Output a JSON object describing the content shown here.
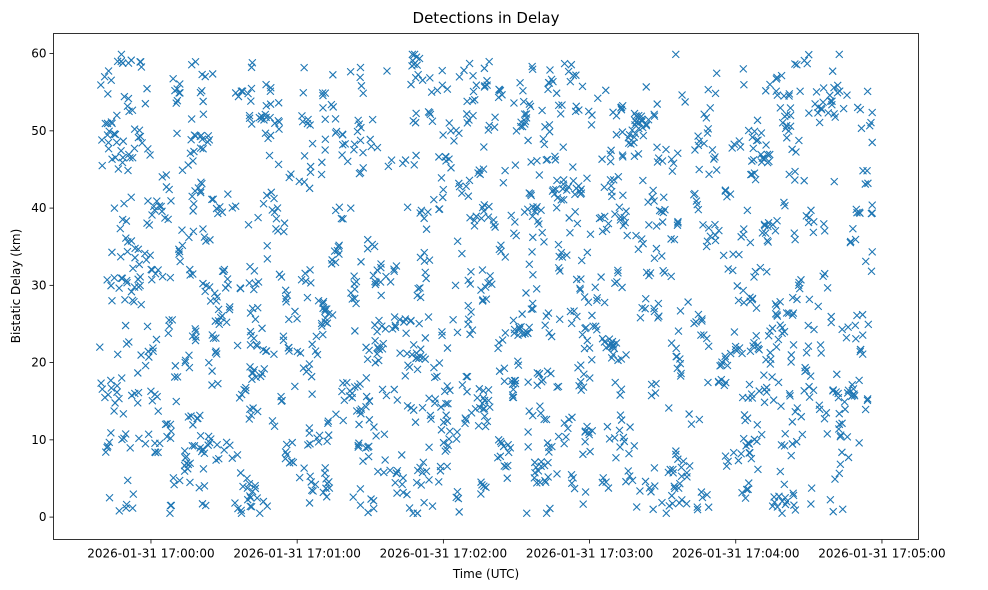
{
  "chart_data": {
    "type": "scatter",
    "title": "Detections in Delay",
    "xlabel": "Time (UTC)",
    "ylabel": "Bistatic Delay (km)",
    "marker": "x",
    "color": "#1f77b4",
    "grid": false,
    "legend": "none",
    "x_format": "datetime",
    "x_start": "2026-01-31 16:59:39",
    "x_end": "2026-01-31 17:04:56",
    "xlim": [
      "2026-01-31 16:59:20",
      "2026-01-31 17:05:15"
    ],
    "ylim": [
      -2.9,
      62.6
    ],
    "x_ticks": [
      "2026-01-31 17:00:00",
      "2026-01-31 17:01:00",
      "2026-01-31 17:02:00",
      "2026-01-31 17:03:00",
      "2026-01-31 17:04:00",
      "2026-01-31 17:05:00"
    ],
    "y_ticks": [
      0,
      10,
      20,
      30,
      40,
      50,
      60
    ],
    "point_count": 1900,
    "y_range": [
      0.5,
      59.9
    ],
    "sample_points": [
      {
        "x": "2026-01-31 16:59:39",
        "y": 22.0
      },
      {
        "x": "2026-01-31 16:59:40",
        "y": 45.5
      },
      {
        "x": "2026-01-31 16:59:41",
        "y": 57.0
      },
      {
        "x": "2026-01-31 16:59:42",
        "y": 9.0
      },
      {
        "x": "2026-01-31 16:59:43",
        "y": 2.5
      },
      {
        "x": "2026-01-31 16:59:44",
        "y": 28.0
      },
      {
        "x": "2026-01-31 16:59:45",
        "y": 40.0
      },
      {
        "x": "2026-01-31 16:59:46",
        "y": 52.0
      },
      {
        "x": "2026-01-31 16:59:47",
        "y": 0.8
      },
      {
        "x": "2026-01-31 16:59:48",
        "y": 18.0
      },
      {
        "x": "2026-01-31 16:59:56",
        "y": 27.5
      },
      {
        "x": "2026-01-31 17:00:06",
        "y": 12.0
      },
      {
        "x": "2026-01-31 17:00:08",
        "y": 12.0
      },
      {
        "x": "2026-01-31 17:00:16",
        "y": 4.5
      },
      {
        "x": "2026-01-31 17:01:22",
        "y": 40.0
      },
      {
        "x": "2026-01-31 17:01:33",
        "y": 22.0
      },
      {
        "x": "2026-01-31 17:02:05",
        "y": 30.0
      },
      {
        "x": "2026-01-31 17:02:30",
        "y": 50.0
      },
      {
        "x": "2026-01-31 17:02:55",
        "y": 38.0
      },
      {
        "x": "2026-01-31 17:03:15",
        "y": 21.0
      },
      {
        "x": "2026-01-31 17:03:45",
        "y": 45.0
      },
      {
        "x": "2026-01-31 17:04:20",
        "y": 24.0
      },
      {
        "x": "2026-01-31 17:04:40",
        "y": 0.7
      },
      {
        "x": "2026-01-31 17:04:56",
        "y": 48.5
      }
    ]
  }
}
